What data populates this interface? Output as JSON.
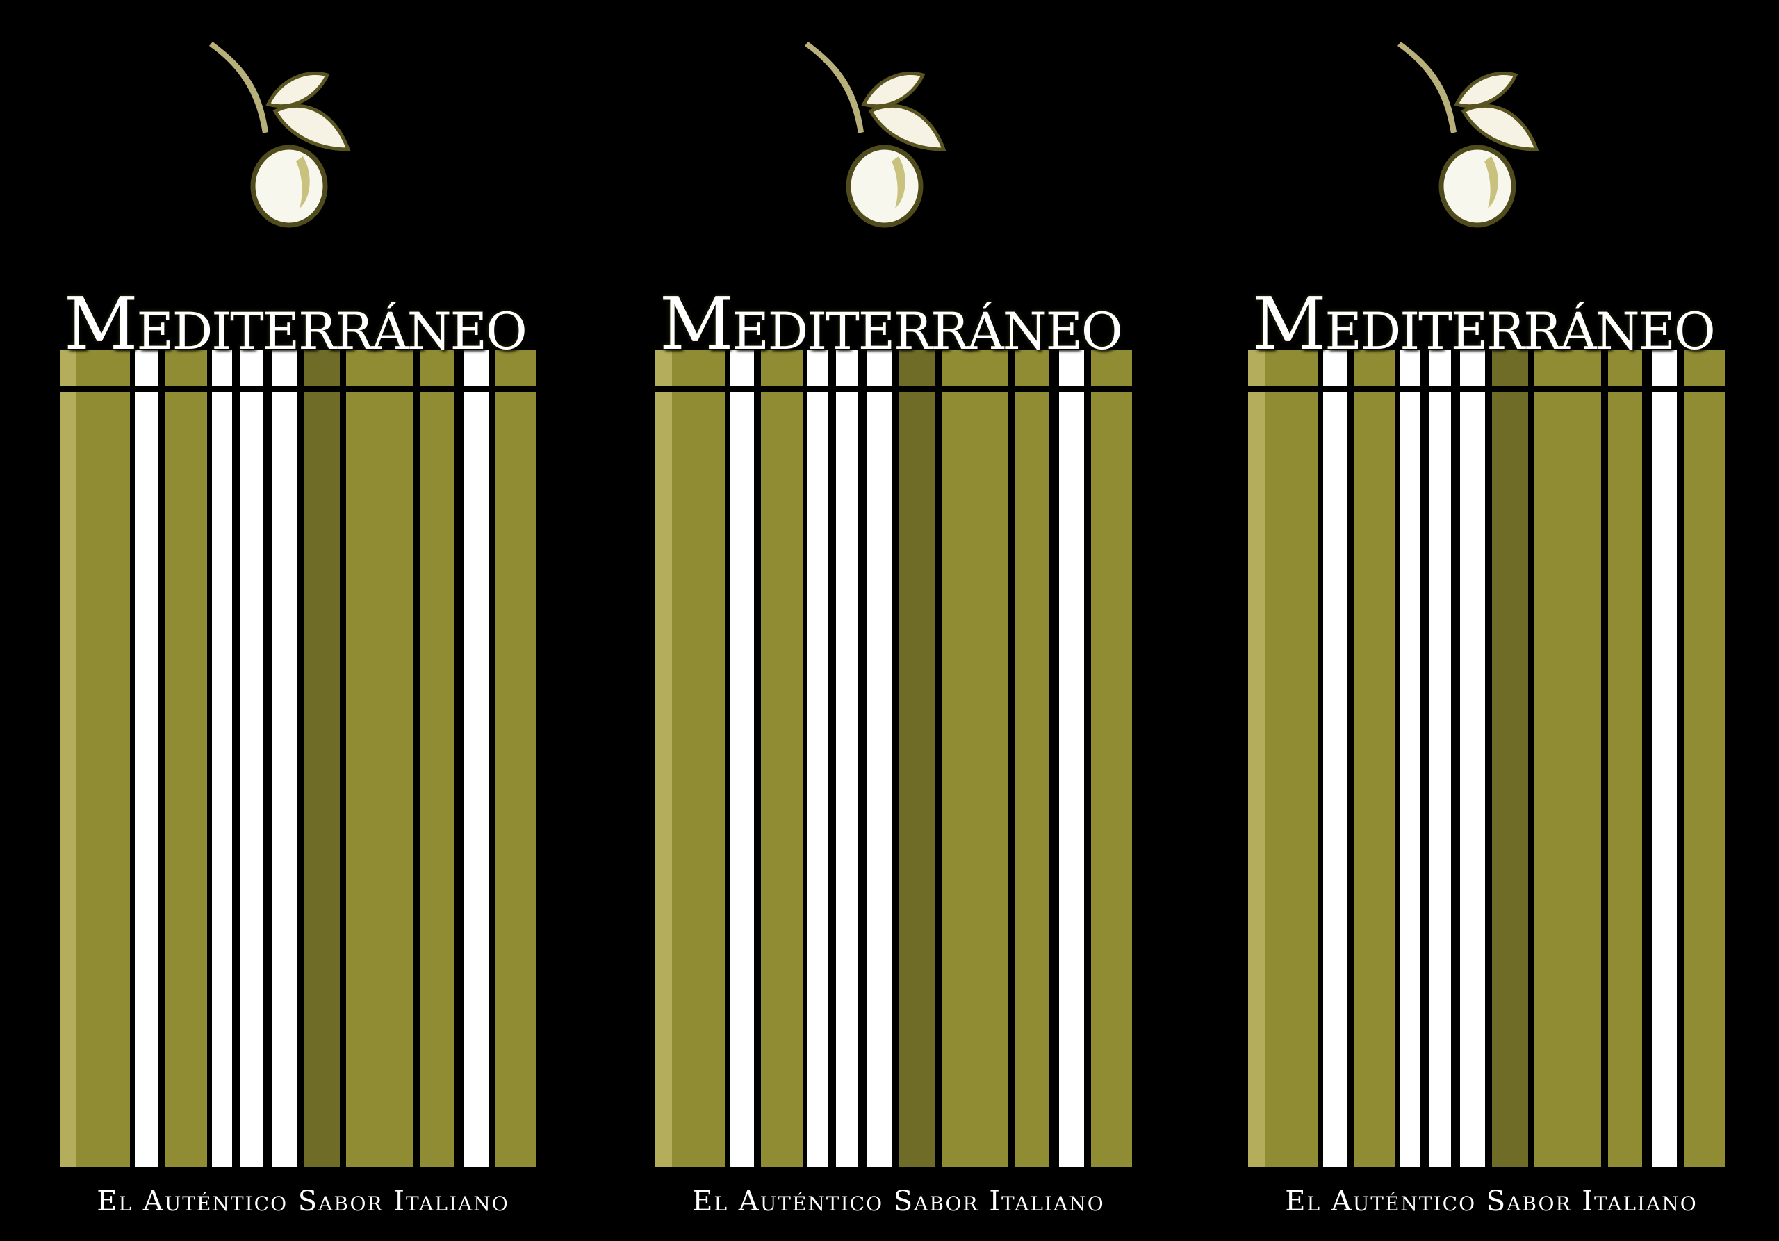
{
  "brand": {
    "title": "Mediterráneo",
    "tagline": "El Auténtico Sabor Italiano",
    "logo_icon": "olive-branch-icon"
  },
  "colors": {
    "background": "#000000",
    "olive": "#8f8c34",
    "olive_light": "#b3ad5c",
    "olive_dark": "#6f6c28",
    "stripe_white": "#ffffff"
  },
  "panels": [
    {
      "title": "Mediterráneo",
      "tagline": "El Auténtico Sabor Italiano"
    },
    {
      "title": "Mediterráneo",
      "tagline": "El Auténtico Sabor Italiano"
    },
    {
      "title": "Mediterráneo",
      "tagline": "El Auténtico Sabor Italiano"
    }
  ]
}
